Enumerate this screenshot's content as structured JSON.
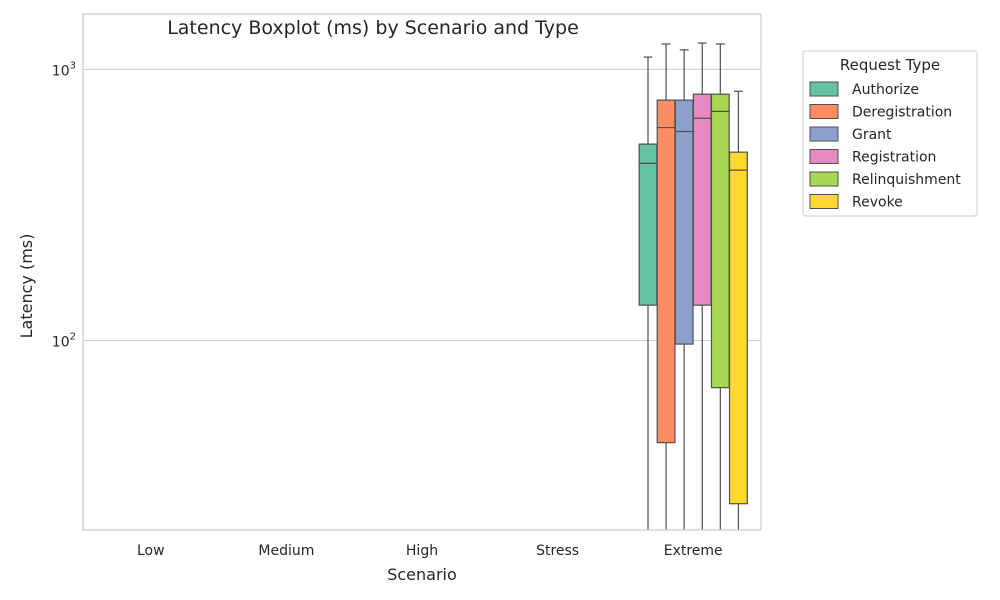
{
  "chart_data": {
    "type": "boxplot",
    "title": "Latency Boxplot (ms) by Scenario and Type",
    "xlabel": "Scenario",
    "ylabel": "Latency (ms)",
    "y_scale": "log",
    "ylim": [
      20,
      1600
    ],
    "y_ticks": [
      {
        "value": 100,
        "base": "10",
        "exp": "2"
      },
      {
        "value": 1000,
        "base": "10",
        "exp": "3"
      }
    ],
    "grid": "horizontal",
    "categories": [
      "Low",
      "Medium",
      "High",
      "Stress",
      "Extreme"
    ],
    "legend": {
      "title": "Request Type",
      "placement": "outside-upper-right"
    },
    "series": [
      {
        "name": "Authorize",
        "color": "#66c2a5",
        "boxes": [
          {
            "category": "Extreme",
            "whisker_low": 20,
            "q1": 135,
            "median": 450,
            "q3": 530,
            "whisker_high": 1110
          }
        ]
      },
      {
        "name": "Deregistration",
        "color": "#fc8d62",
        "boxes": [
          {
            "category": "Extreme",
            "whisker_low": 20,
            "q1": 42,
            "median": 610,
            "q3": 770,
            "whisker_high": 1240
          }
        ]
      },
      {
        "name": "Grant",
        "color": "#8da0cb",
        "boxes": [
          {
            "category": "Extreme",
            "whisker_low": 20,
            "q1": 97,
            "median": 590,
            "q3": 770,
            "whisker_high": 1180
          }
        ]
      },
      {
        "name": "Registration",
        "color": "#e78ac3",
        "boxes": [
          {
            "category": "Extreme",
            "whisker_low": 20,
            "q1": 135,
            "median": 660,
            "q3": 810,
            "whisker_high": 1250
          }
        ]
      },
      {
        "name": "Relinquishment",
        "color": "#a6d854",
        "boxes": [
          {
            "category": "Extreme",
            "whisker_low": 20,
            "q1": 67,
            "median": 700,
            "q3": 810,
            "whisker_high": 1240
          }
        ]
      },
      {
        "name": "Revoke",
        "color": "#ffd92f",
        "boxes": [
          {
            "category": "Extreme",
            "whisker_low": 20,
            "q1": 25,
            "median": 425,
            "q3": 495,
            "whisker_high": 830
          }
        ]
      }
    ]
  }
}
